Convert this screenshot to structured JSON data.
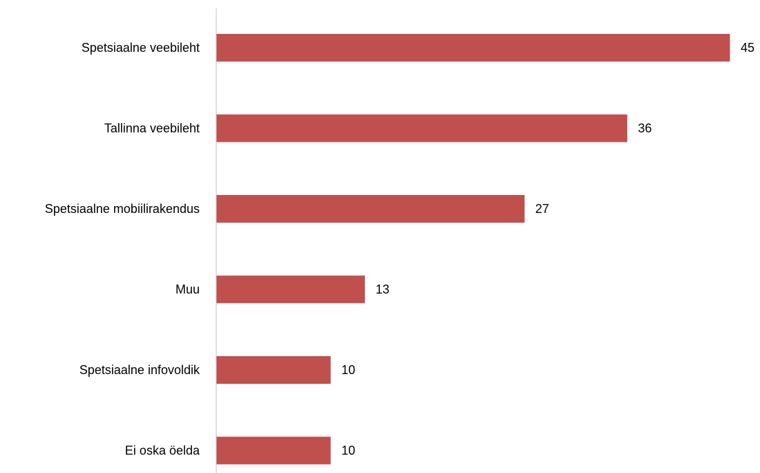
{
  "chart_data": {
    "type": "bar",
    "orientation": "horizontal",
    "categories": [
      "Spetsiaalne veebileht",
      "Tallinna veebileht",
      "Spetsiaalne mobiilirakendus",
      "Muu",
      "Spetsiaalne infovoldik",
      "Ei oska öelda"
    ],
    "values": [
      45,
      36,
      27,
      13,
      10,
      10
    ],
    "title": "",
    "xlabel": "",
    "ylabel": "",
    "xlim": [
      0,
      45
    ],
    "grid": false,
    "legend": "none",
    "bar_color": "#c0504d",
    "axis_color": "#bfbfbf"
  }
}
